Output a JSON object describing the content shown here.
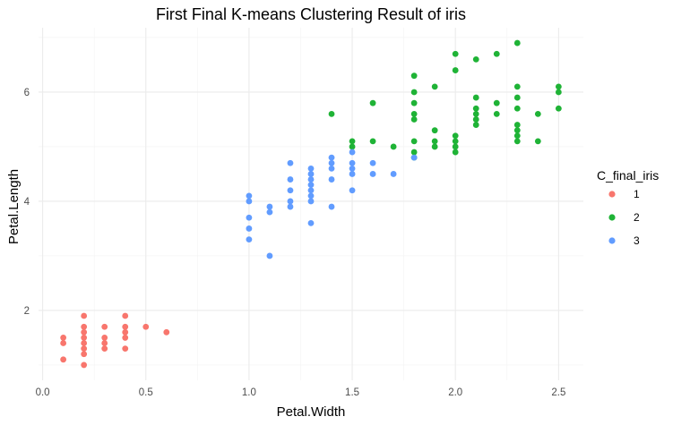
{
  "chart_data": {
    "type": "scatter",
    "title": "First Final K-means Clustering Result of iris",
    "xlabel": "Petal.Width",
    "ylabel": "Petal.Length",
    "xlim": [
      -0.02,
      2.62
    ],
    "ylim": [
      0.72,
      7.18
    ],
    "x_ticks": [
      0.0,
      0.5,
      1.0,
      1.5,
      2.0,
      2.5
    ],
    "x_tick_labels": [
      "0.0",
      "0.5",
      "1.0",
      "1.5",
      "2.0",
      "2.5"
    ],
    "y_ticks": [
      2,
      4,
      6
    ],
    "y_tick_labels": [
      "2",
      "4",
      "6"
    ],
    "grid": true,
    "legend": {
      "title": "C_final_iris",
      "position": "right"
    },
    "series": [
      {
        "name": "1",
        "color": "#F8766D",
        "points": [
          [
            0.1,
            1.5
          ],
          [
            0.1,
            1.4
          ],
          [
            0.1,
            1.1
          ],
          [
            0.2,
            1.0
          ],
          [
            0.2,
            1.2
          ],
          [
            0.2,
            1.3
          ],
          [
            0.2,
            1.4
          ],
          [
            0.2,
            1.5
          ],
          [
            0.2,
            1.6
          ],
          [
            0.2,
            1.7
          ],
          [
            0.2,
            1.9
          ],
          [
            0.3,
            1.3
          ],
          [
            0.3,
            1.4
          ],
          [
            0.3,
            1.5
          ],
          [
            0.3,
            1.7
          ],
          [
            0.4,
            1.3
          ],
          [
            0.4,
            1.5
          ],
          [
            0.4,
            1.6
          ],
          [
            0.4,
            1.7
          ],
          [
            0.4,
            1.9
          ],
          [
            0.5,
            1.7
          ],
          [
            0.6,
            1.6
          ]
        ]
      },
      {
        "name": "2",
        "color": "#1FB336",
        "points": [
          [
            1.4,
            5.6
          ],
          [
            1.5,
            5.0
          ],
          [
            1.5,
            5.1
          ],
          [
            1.6,
            5.1
          ],
          [
            1.6,
            5.8
          ],
          [
            1.7,
            5.0
          ],
          [
            1.8,
            4.8
          ],
          [
            1.8,
            4.9
          ],
          [
            1.8,
            5.1
          ],
          [
            1.8,
            5.5
          ],
          [
            1.8,
            5.6
          ],
          [
            1.8,
            5.8
          ],
          [
            1.8,
            6.0
          ],
          [
            1.8,
            6.3
          ],
          [
            1.9,
            5.0
          ],
          [
            1.9,
            5.1
          ],
          [
            1.9,
            5.3
          ],
          [
            1.9,
            6.1
          ],
          [
            2.0,
            4.9
          ],
          [
            2.0,
            5.0
          ],
          [
            2.0,
            5.1
          ],
          [
            2.0,
            5.2
          ],
          [
            2.0,
            6.4
          ],
          [
            2.0,
            6.7
          ],
          [
            2.1,
            5.4
          ],
          [
            2.1,
            5.5
          ],
          [
            2.1,
            5.6
          ],
          [
            2.1,
            5.7
          ],
          [
            2.1,
            5.9
          ],
          [
            2.1,
            6.6
          ],
          [
            2.2,
            5.6
          ],
          [
            2.2,
            5.8
          ],
          [
            2.2,
            6.7
          ],
          [
            2.3,
            5.1
          ],
          [
            2.3,
            5.2
          ],
          [
            2.3,
            5.3
          ],
          [
            2.3,
            5.4
          ],
          [
            2.3,
            5.7
          ],
          [
            2.3,
            5.9
          ],
          [
            2.3,
            6.1
          ],
          [
            2.3,
            6.9
          ],
          [
            2.4,
            5.1
          ],
          [
            2.4,
            5.6
          ],
          [
            2.5,
            5.7
          ],
          [
            2.5,
            6.0
          ],
          [
            2.5,
            6.1
          ]
        ]
      },
      {
        "name": "3",
        "color": "#619CFF",
        "points": [
          [
            1.0,
            3.3
          ],
          [
            1.0,
            3.5
          ],
          [
            1.0,
            3.7
          ],
          [
            1.0,
            4.0
          ],
          [
            1.0,
            4.1
          ],
          [
            1.1,
            3.0
          ],
          [
            1.1,
            3.8
          ],
          [
            1.1,
            3.9
          ],
          [
            1.2,
            3.9
          ],
          [
            1.2,
            4.0
          ],
          [
            1.2,
            4.2
          ],
          [
            1.2,
            4.4
          ],
          [
            1.2,
            4.7
          ],
          [
            1.3,
            3.6
          ],
          [
            1.3,
            4.0
          ],
          [
            1.3,
            4.1
          ],
          [
            1.3,
            4.2
          ],
          [
            1.3,
            4.3
          ],
          [
            1.3,
            4.4
          ],
          [
            1.3,
            4.5
          ],
          [
            1.3,
            4.6
          ],
          [
            1.4,
            3.9
          ],
          [
            1.4,
            4.4
          ],
          [
            1.4,
            4.6
          ],
          [
            1.4,
            4.7
          ],
          [
            1.4,
            4.8
          ],
          [
            1.5,
            4.2
          ],
          [
            1.5,
            4.5
          ],
          [
            1.5,
            4.6
          ],
          [
            1.5,
            4.7
          ],
          [
            1.5,
            4.9
          ],
          [
            1.6,
            4.5
          ],
          [
            1.6,
            4.7
          ],
          [
            1.7,
            4.5
          ],
          [
            1.8,
            4.8
          ]
        ]
      }
    ]
  }
}
